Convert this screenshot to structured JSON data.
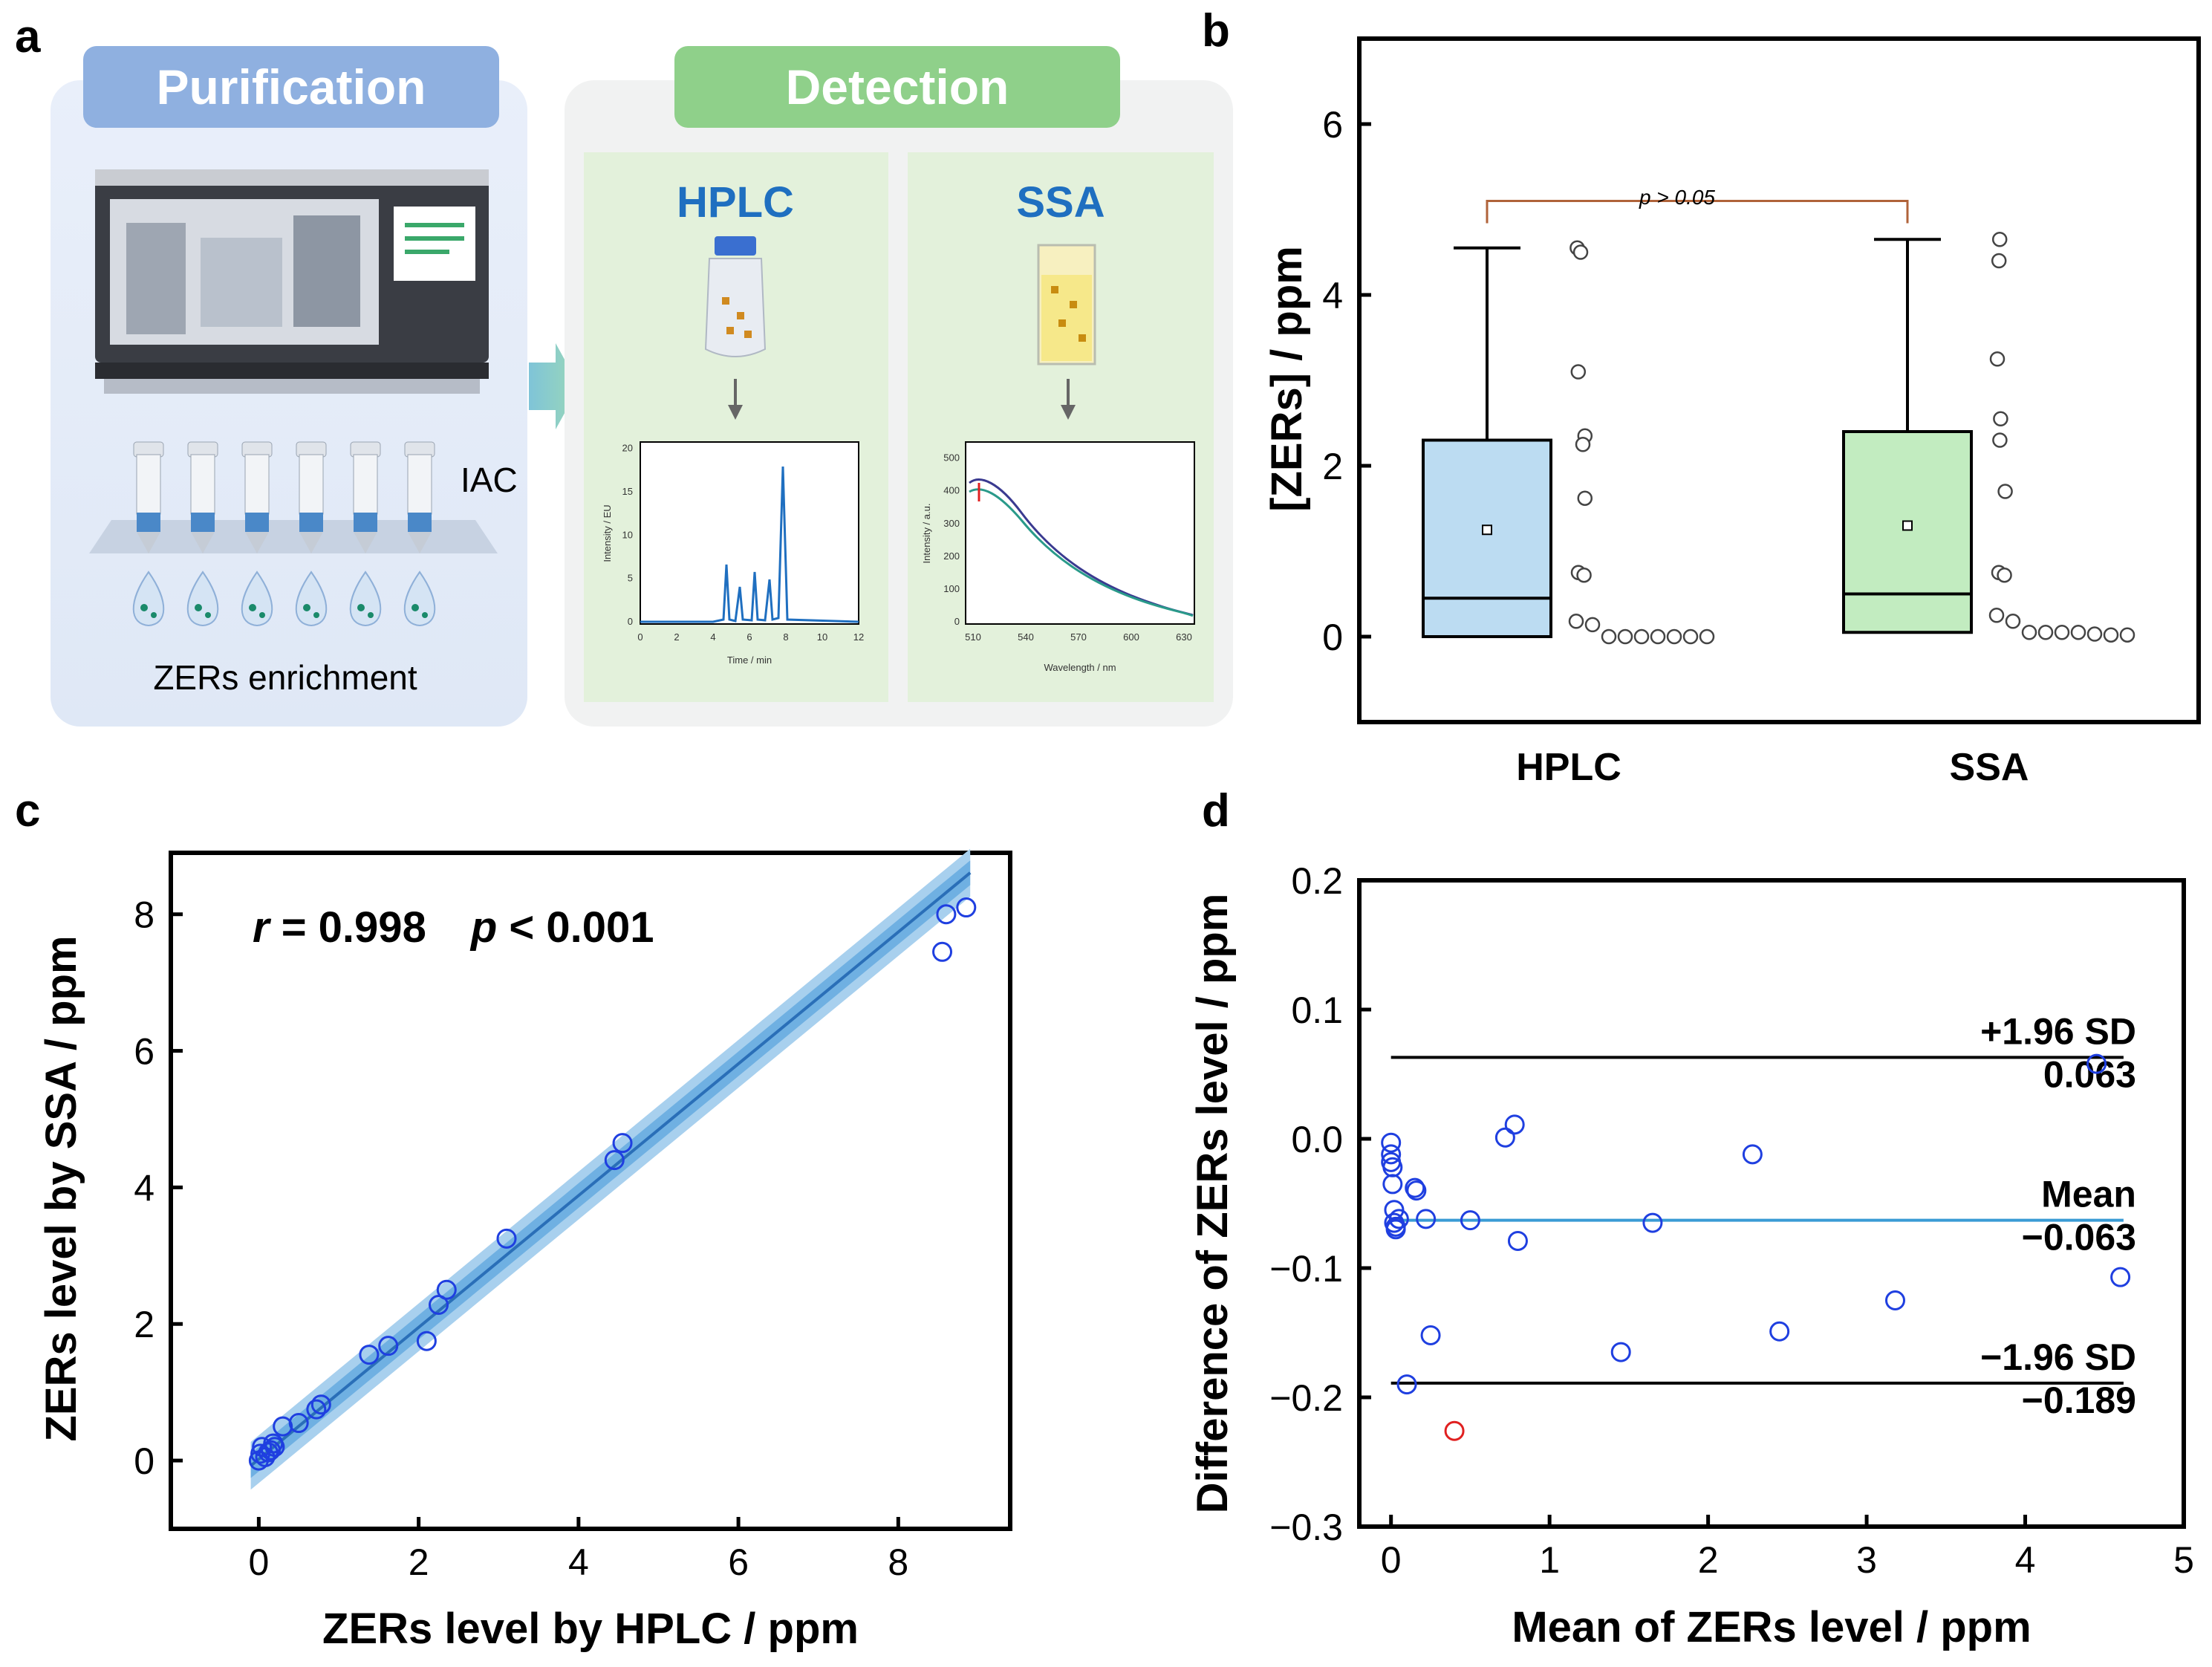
{
  "panel_labels": {
    "a": "a",
    "b": "b",
    "c": "c",
    "d": "d"
  },
  "schematic": {
    "purification_title": "Purification",
    "detection_title": "Detection",
    "iac_label": "IAC",
    "enrichment_label": "ZERs enrichment",
    "hplc_title": "HPLC",
    "ssa_title": "SSA",
    "hplc_inset": {
      "ylabel": "Intensity / EU",
      "xlabel": "Time / min",
      "yticks": [
        "0",
        "5",
        "10",
        "15",
        "20"
      ],
      "xticks": [
        "0",
        "2",
        "4",
        "6",
        "8",
        "10",
        "12"
      ]
    },
    "ssa_inset": {
      "ylabel": "Intensity / a.u.",
      "xlabel": "Wavelength / nm",
      "yticks": [
        "0",
        "100",
        "200",
        "300",
        "400",
        "500"
      ],
      "xticks": [
        "510",
        "540",
        "570",
        "600",
        "630"
      ]
    },
    "colors": {
      "purification": "#8fb0e0",
      "detection": "#8fd08a",
      "hplc": "#1f6fc0",
      "ssa": "#1f6fc0"
    }
  },
  "chart_data": [
    {
      "panel": "b",
      "type": "box",
      "ylabel": "[ZERs] / ppm",
      "yticks": [
        "0",
        "2",
        "4",
        "6"
      ],
      "ylim": [
        -1,
        7
      ],
      "categories": [
        "HPLC",
        "SSA"
      ],
      "annotation": "p > 0.05",
      "boxes": [
        {
          "name": "HPLC",
          "color": "#bcdcf2",
          "q1": 0,
          "median": 0.45,
          "q3": 2.3,
          "mean": 1.25,
          "whisker_low": 0,
          "whisker_high": 4.55,
          "points": [
            4.55,
            4.5,
            3.1,
            2.35,
            2.25,
            1.62,
            0.75,
            0.72,
            0.18,
            0.14,
            0,
            0,
            0,
            0,
            0,
            0,
            0
          ]
        },
        {
          "name": "SSA",
          "color": "#c2ecc0",
          "q1": 0.05,
          "median": 0.5,
          "q3": 2.4,
          "mean": 1.3,
          "whisker_low": 0,
          "whisker_high": 4.65,
          "points": [
            4.65,
            4.4,
            3.25,
            2.55,
            2.3,
            1.7,
            0.75,
            0.72,
            0.25,
            0.18,
            0.05,
            0.05,
            0.05,
            0.05,
            0.03,
            0.02,
            0.02
          ]
        }
      ]
    },
    {
      "panel": "c",
      "type": "scatter",
      "annotation_r": "r",
      "annotation_r_value": " = 0.998",
      "annotation_p": "p",
      "annotation_p_value": " < 0.001",
      "xlabel": "ZERs level by HPLC / ppm",
      "ylabel": "ZERs level by  SSA / ppm",
      "xlim": [
        -1.1,
        9.4
      ],
      "ylim": [
        -1,
        8.9
      ],
      "xticks": [
        "0",
        "2",
        "4",
        "6",
        "8"
      ],
      "yticks": [
        "0",
        "2",
        "4",
        "6",
        "8"
      ],
      "fit": {
        "slope": 0.965,
        "intercept": 0.02,
        "band_inner": 0.18,
        "band_outer": 0.35
      },
      "x": [
        0.0,
        0.02,
        0.04,
        0.08,
        0.12,
        0.15,
        0.18,
        0.2,
        0.3,
        0.5,
        0.72,
        0.78,
        1.38,
        1.62,
        2.1,
        2.25,
        2.35,
        3.1,
        4.45,
        4.55,
        8.55,
        8.6,
        8.85
      ],
      "y": [
        0.0,
        0.1,
        0.2,
        0.05,
        0.12,
        0.15,
        0.25,
        0.2,
        0.5,
        0.55,
        0.75,
        0.82,
        1.55,
        1.68,
        1.75,
        2.28,
        2.5,
        3.25,
        4.4,
        4.65,
        7.45,
        8.0,
        8.1
      ]
    },
    {
      "panel": "d",
      "type": "scatter",
      "xlabel": "Mean of ZERs level / ppm",
      "ylabel": "Difference of ZERs level / ppm",
      "xlim": [
        -0.2,
        5.0
      ],
      "ylim": [
        -0.3,
        0.2
      ],
      "xticks": [
        "0",
        "1",
        "2",
        "3",
        "4",
        "5"
      ],
      "yticks": [
        "0.2",
        "0.1",
        "0.0",
        "−0.1",
        "−0.2",
        "−0.3"
      ],
      "lines": [
        {
          "name": "+1.96 SD",
          "value": 0.063,
          "value_label": "0.063",
          "color": "#000000"
        },
        {
          "name": "Mean",
          "value": -0.063,
          "value_label": "−0.063",
          "color": "#3a9bd5"
        },
        {
          "name": "−1.96 SD",
          "value": -0.189,
          "value_label": "−0.189",
          "color": "#000000"
        }
      ],
      "x": [
        0.0,
        0.0,
        0.0,
        0.01,
        0.01,
        0.02,
        0.02,
        0.03,
        0.03,
        0.05,
        0.15,
        0.16,
        0.22,
        0.25,
        0.1,
        0.5,
        0.72,
        0.78,
        0.8,
        1.45,
        1.65,
        2.28,
        2.45,
        3.18,
        4.45,
        4.6
      ],
      "y": [
        -0.003,
        -0.012,
        -0.018,
        -0.022,
        -0.035,
        -0.055,
        -0.065,
        -0.068,
        -0.07,
        -0.062,
        -0.038,
        -0.04,
        -0.062,
        -0.152,
        -0.19,
        -0.063,
        0.001,
        0.011,
        -0.079,
        -0.165,
        -0.065,
        -0.012,
        -0.149,
        -0.125,
        0.058,
        -0.107
      ],
      "outlier": {
        "x": 0.4,
        "y": -0.226,
        "color": "#e02020"
      }
    }
  ]
}
